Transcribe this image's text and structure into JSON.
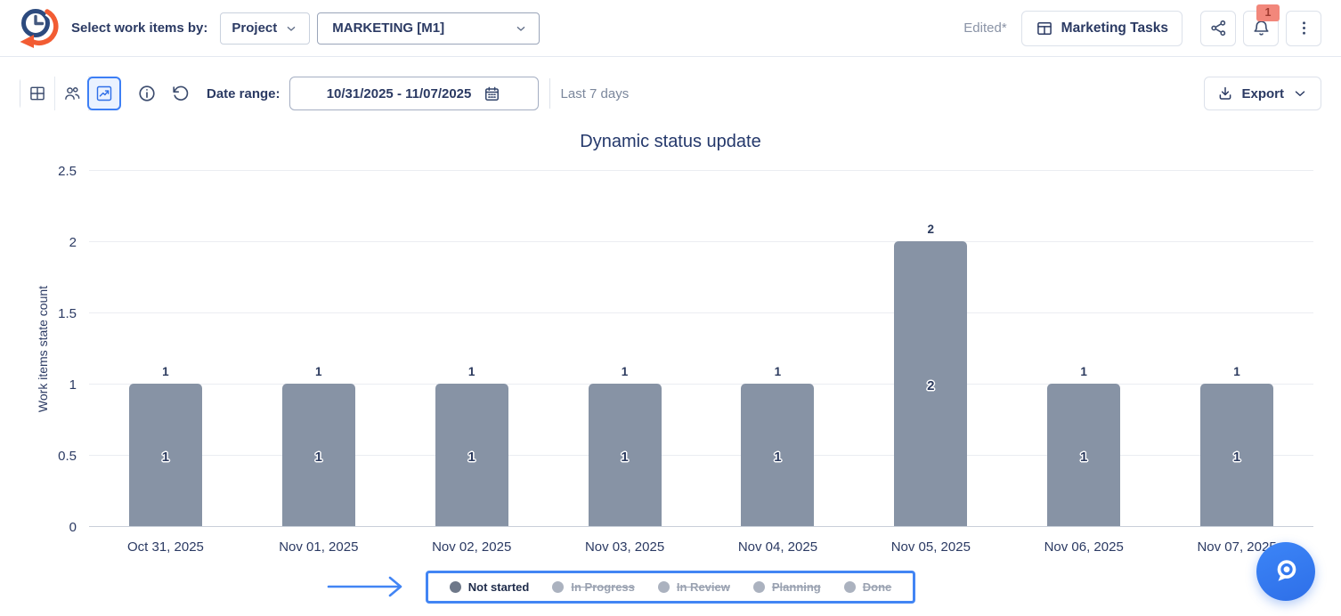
{
  "header": {
    "select_label": "Select work items by:",
    "group_by": {
      "value": "Project"
    },
    "project": {
      "value": "MARKETING [M1]"
    },
    "edited_label": "Edited*",
    "board_button_label": "Marketing Tasks",
    "notification_count": "1"
  },
  "toolbar": {
    "date_range_label": "Date range:",
    "date_range_value": "10/31/2025 - 11/07/2025",
    "date_range_hint": "Last 7 days",
    "export_label": "Export"
  },
  "chart_data": {
    "type": "bar",
    "title": "Dynamic status update",
    "xlabel": "",
    "ylabel": "Work items state count",
    "ylim": [
      0,
      2.5
    ],
    "yticks": [
      0,
      0.5,
      1,
      1.5,
      2,
      2.5
    ],
    "grid": true,
    "legend_position": "bottom",
    "categories": [
      "Oct 31, 2025",
      "Nov 01, 2025",
      "Nov 02, 2025",
      "Nov 03, 2025",
      "Nov 04, 2025",
      "Nov 05, 2025",
      "Nov 06, 2025",
      "Nov 07, 2025"
    ],
    "series": [
      {
        "name": "Not started",
        "visible": true,
        "color": "#8793A5",
        "values": [
          1,
          1,
          1,
          1,
          1,
          2,
          1,
          1
        ]
      },
      {
        "name": "In Progress",
        "visible": false
      },
      {
        "name": "In Review",
        "visible": false
      },
      {
        "name": "Planning",
        "visible": false
      },
      {
        "name": "Done",
        "visible": false
      }
    ]
  },
  "colors": {
    "accent_blue": "#3D7FF5",
    "annotation_blue": "#4285F4",
    "bar_fill": "#8793A5",
    "navy_text": "#2B3A63",
    "muted_text": "#8A93A6",
    "badge_bg": "#F2877B",
    "badge_text": "#A03B31",
    "legend_active_dot": "#6E7889",
    "legend_inactive_dot": "#ABB2BF"
  },
  "icons": [
    "app-logo",
    "table-view",
    "people-view",
    "chart-view",
    "info",
    "reset",
    "calendar",
    "share",
    "bell",
    "kebab-menu",
    "board-grid",
    "download",
    "chevron-down",
    "annotation-arrow",
    "search-fab"
  ]
}
